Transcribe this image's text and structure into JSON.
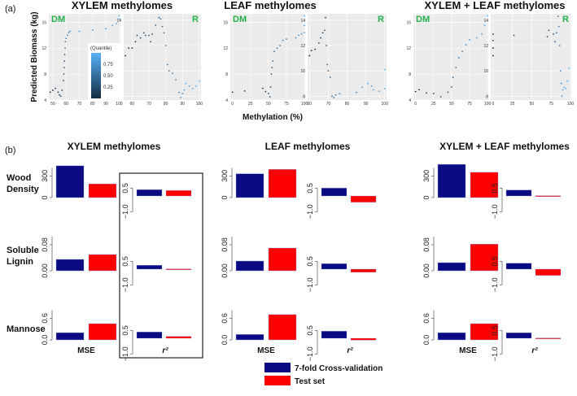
{
  "chart_data": {
    "panel_a": {
      "tag": "(a)",
      "type": "scatter",
      "ylabel": "Predicted Biomass (kg)",
      "xlabel": "Methylation (%)",
      "titles": [
        "XYLEM methylomes",
        "LEAF methylomes",
        "XYLEM + LEAF methylomes"
      ],
      "colorbar": {
        "title": "(Quantile)",
        "tick_labels": [
          "0.75",
          "0.50",
          "0.25"
        ],
        "ticks": [
          0.75,
          0.5,
          0.25
        ],
        "low_color": "#132B43",
        "high_color": "#56B1F7"
      },
      "panels": [
        {
          "group": 0,
          "label": "DM",
          "xlim": [
            47,
            101
          ],
          "ylim": [
            4,
            17.3
          ],
          "xticks": [
            50,
            60,
            70,
            80,
            90,
            100
          ],
          "yticks": [
            4,
            8,
            12,
            16
          ],
          "points": [
            [
              48,
              5.2
            ],
            [
              50,
              5.5
            ],
            [
              52,
              5.8
            ],
            [
              54,
              5.2
            ],
            [
              55,
              4.8
            ],
            [
              56,
              4.6
            ],
            [
              57,
              5.5
            ],
            [
              58,
              7
            ],
            [
              58.3,
              8
            ],
            [
              58.6,
              9
            ],
            [
              58.8,
              10
            ],
            [
              59,
              11
            ],
            [
              59.3,
              12
            ],
            [
              59.5,
              13
            ],
            [
              60,
              13.5
            ],
            [
              61,
              14
            ],
            [
              62,
              14.4
            ],
            [
              63,
              14.6
            ],
            [
              70,
              14.6
            ],
            [
              80,
              14.8
            ],
            [
              90,
              15
            ],
            [
              95,
              15.5
            ],
            [
              98,
              15.8
            ],
            [
              100,
              16.5
            ],
            [
              100,
              17
            ]
          ]
        },
        {
          "group": 0,
          "label": "R",
          "xlim": [
            55,
            101
          ],
          "ylim": [
            7.7,
            14.5
          ],
          "xticks": [
            60,
            70,
            80,
            90,
            100
          ],
          "yticks": [
            8,
            10,
            12,
            14
          ],
          "points": [
            [
              56,
              11.2
            ],
            [
              58,
              11.8
            ],
            [
              60,
              11.8
            ],
            [
              62,
              12.3
            ],
            [
              63,
              12.8
            ],
            [
              65,
              12.6
            ],
            [
              67,
              13
            ],
            [
              68,
              12.8
            ],
            [
              70,
              12.8
            ],
            [
              71,
              12.3
            ],
            [
              72,
              12.9
            ],
            [
              74,
              13.6
            ],
            [
              76,
              14.2
            ],
            [
              77,
              14.1
            ],
            [
              78,
              13.5
            ],
            [
              79,
              13
            ],
            [
              80,
              12
            ],
            [
              81,
              10.5
            ],
            [
              82,
              10
            ],
            [
              84,
              9.8
            ],
            [
              86,
              9.3
            ],
            [
              88,
              8.3
            ],
            [
              89,
              7.9
            ],
            [
              90,
              8.2
            ],
            [
              91,
              8.5
            ],
            [
              92,
              9
            ],
            [
              94,
              8.8
            ],
            [
              96,
              8.6
            ],
            [
              98,
              8.8
            ],
            [
              100,
              9.2
            ]
          ]
        },
        {
          "group": 1,
          "label": "DM",
          "xlim": [
            -3,
            101
          ],
          "ylim": [
            4,
            17.3
          ],
          "xticks": [
            0,
            25,
            50,
            75,
            100
          ],
          "yticks": [
            4,
            8,
            12,
            16
          ],
          "points": [
            [
              0,
              5.2
            ],
            [
              17,
              5.4
            ],
            [
              42,
              5.8
            ],
            [
              46,
              5.3
            ],
            [
              50,
              5.0
            ],
            [
              52,
              4.5
            ],
            [
              53,
              6
            ],
            [
              54,
              8
            ],
            [
              55,
              9
            ],
            [
              56,
              10
            ],
            [
              58,
              11.5
            ],
            [
              62,
              12
            ],
            [
              66,
              12.4
            ],
            [
              70,
              13.2
            ],
            [
              75,
              13.4
            ],
            [
              88,
              13.6
            ],
            [
              92,
              14
            ],
            [
              96,
              14.2
            ],
            [
              100,
              14.4
            ],
            [
              100,
              15.5
            ],
            [
              100,
              17
            ]
          ]
        },
        {
          "group": 1,
          "label": "R",
          "xlim": [
            59,
            101
          ],
          "ylim": [
            7.7,
            14.5
          ],
          "xticks": [
            60,
            70,
            80,
            90,
            100
          ],
          "yticks": [
            8,
            10,
            12,
            14
          ],
          "points": [
            [
              60,
              11.2
            ],
            [
              61,
              11.6
            ],
            [
              63,
              11.7
            ],
            [
              65,
              12.2
            ],
            [
              66,
              12.6
            ],
            [
              67,
              13
            ],
            [
              68,
              13.2
            ],
            [
              68.5,
              14.2
            ],
            [
              69,
              12
            ],
            [
              69.5,
              10.5
            ],
            [
              70,
              10
            ],
            [
              71,
              9.5
            ],
            [
              72,
              8
            ],
            [
              73,
              7.9
            ],
            [
              74,
              8.1
            ],
            [
              76,
              8.2
            ],
            [
              85,
              8.3
            ],
            [
              88,
              8.7
            ],
            [
              91,
              9
            ],
            [
              93,
              8.8
            ],
            [
              94,
              8.5
            ],
            [
              97,
              8.4
            ],
            [
              100,
              8.6
            ],
            [
              100,
              10.1
            ]
          ]
        },
        {
          "group": 2,
          "label": "DM",
          "xlim": [
            -3,
            101
          ],
          "ylim": [
            4,
            17.3
          ],
          "xticks": [
            0,
            25,
            50,
            75,
            100
          ],
          "yticks": [
            4,
            8,
            12,
            16
          ],
          "points": [
            [
              0,
              5.3
            ],
            [
              5,
              5.6
            ],
            [
              15,
              5.1
            ],
            [
              25,
              5.0
            ],
            [
              35,
              4.5
            ],
            [
              45,
              5.2
            ],
            [
              50,
              6
            ],
            [
              52,
              7.5
            ],
            [
              56,
              9
            ],
            [
              60,
              10.5
            ],
            [
              65,
              11.5
            ],
            [
              70,
              12.5
            ],
            [
              75,
              13.3
            ],
            [
              85,
              13.6
            ],
            [
              92,
              14.2
            ],
            [
              96,
              15.5
            ],
            [
              100,
              17
            ]
          ]
        },
        {
          "group": 2,
          "label": "R",
          "xlim": [
            -3,
            101
          ],
          "ylim": [
            7.7,
            14.5
          ],
          "xticks": [
            0,
            25,
            50,
            75,
            100
          ],
          "yticks": [
            8,
            10,
            12,
            14
          ],
          "points": [
            [
              0,
              11.2
            ],
            [
              0,
              11.8
            ],
            [
              0,
              12.4
            ],
            [
              0,
              12.9
            ],
            [
              27,
              12.8
            ],
            [
              70,
              12.7
            ],
            [
              72,
              13.2
            ],
            [
              78,
              12.9
            ],
            [
              80,
              12.3
            ],
            [
              82,
              13
            ],
            [
              84,
              14.3
            ],
            [
              85,
              13.5
            ],
            [
              86,
              12
            ],
            [
              87,
              10
            ],
            [
              88,
              9
            ],
            [
              89,
              8
            ],
            [
              90,
              8.5
            ],
            [
              92,
              8.7
            ],
            [
              94,
              8.6
            ],
            [
              96,
              9.2
            ],
            [
              98,
              10.2
            ]
          ]
        }
      ]
    },
    "panel_b": {
      "tag": "(b)",
      "type": "bar",
      "titles": [
        "XYLEM methylomes",
        "LEAF methylomes",
        "XYLEM + LEAF methylomes"
      ],
      "xlabels": {
        "mse": "MSE",
        "r2": "r²"
      },
      "series": [
        {
          "name": "7-fold Cross-validation",
          "color": "#0a0a82"
        },
        {
          "name": "Test set",
          "color": "#ff0000"
        }
      ],
      "rows": [
        {
          "label": [
            "Wood",
            "Density"
          ],
          "mse_ylim": [
            0,
            450
          ],
          "mse_ticks": [
            0,
            300
          ],
          "mse_tick_labels": [
            "0",
            "300"
          ],
          "r2_ylim": [
            -1.3,
            0.9
          ],
          "r2_ticks": [
            -1.0,
            0.5
          ],
          "r2_tick_labels": [
            "−1.0",
            "0.5"
          ],
          "mse": [
            [
              440,
              190
            ],
            [
              330,
              390
            ],
            [
              460,
              350
            ]
          ],
          "r2": [
            [
              0.4,
              0.35
            ],
            [
              0.5,
              -0.4
            ],
            [
              0.38,
              0.02
            ]
          ]
        },
        {
          "label": [
            "Soluble",
            "Lignin"
          ],
          "mse_ylim": [
            0,
            0.1
          ],
          "mse_ticks": [
            0,
            0.08
          ],
          "mse_tick_labels": [
            "0.00",
            "0.08"
          ],
          "r2_ylim": [
            -1.3,
            0.9
          ],
          "r2_ticks": [
            -1.0,
            0.5
          ],
          "r2_tick_labels": [
            "−1.0",
            "0.5"
          ],
          "mse": [
            [
              0.035,
              0.05
            ],
            [
              0.03,
              0.07
            ],
            [
              0.025,
              0.082
            ]
          ],
          "r2": [
            [
              0.25,
              0.02
            ],
            [
              0.35,
              -0.2
            ],
            [
              0.38,
              -0.4
            ]
          ]
        },
        {
          "label": [
            "Mannose"
          ],
          "mse_ylim": [
            0,
            0.9
          ],
          "mse_ticks": [
            0,
            0.6
          ],
          "mse_tick_labels": [
            "0.0",
            "0.6"
          ],
          "r2_ylim": [
            -1.3,
            0.9
          ],
          "r2_ticks": [
            -1.0,
            0.5
          ],
          "r2_tick_labels": [
            "−1.0",
            "0.5"
          ],
          "mse": [
            [
              0.2,
              0.45
            ],
            [
              0.15,
              0.7
            ],
            [
              0.2,
              0.45
            ]
          ],
          "r2": [
            [
              0.4,
              0.12
            ],
            [
              0.45,
              -0.12
            ],
            [
              0.35,
              0.02
            ]
          ]
        }
      ]
    }
  }
}
